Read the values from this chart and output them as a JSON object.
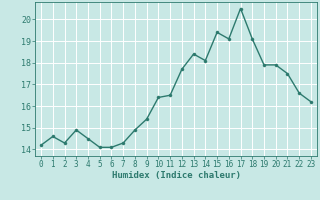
{
  "x": [
    0,
    1,
    2,
    3,
    4,
    5,
    6,
    7,
    8,
    9,
    10,
    11,
    12,
    13,
    14,
    15,
    16,
    17,
    18,
    19,
    20,
    21,
    22,
    23
  ],
  "y": [
    14.2,
    14.6,
    14.3,
    14.9,
    14.5,
    14.1,
    14.1,
    14.3,
    14.9,
    15.4,
    16.4,
    16.5,
    17.7,
    18.4,
    18.1,
    19.4,
    19.1,
    20.5,
    19.1,
    17.9,
    17.9,
    17.5,
    16.6,
    16.2
  ],
  "line_color": "#2d7a6e",
  "marker": "o",
  "marker_size": 2.2,
  "background_color": "#c8e8e5",
  "grid_color": "#ffffff",
  "tick_color": "#2d7a6e",
  "label_color": "#2d7a6e",
  "xlabel": "Humidex (Indice chaleur)",
  "xlim": [
    -0.5,
    23.5
  ],
  "ylim": [
    13.7,
    20.8
  ],
  "yticks": [
    14,
    15,
    16,
    17,
    18,
    19,
    20
  ],
  "xticks": [
    0,
    1,
    2,
    3,
    4,
    5,
    6,
    7,
    8,
    9,
    10,
    11,
    12,
    13,
    14,
    15,
    16,
    17,
    18,
    19,
    20,
    21,
    22,
    23
  ],
  "axis_fontsize": 5.5,
  "xlabel_fontsize": 6.5,
  "linewidth": 1.0
}
